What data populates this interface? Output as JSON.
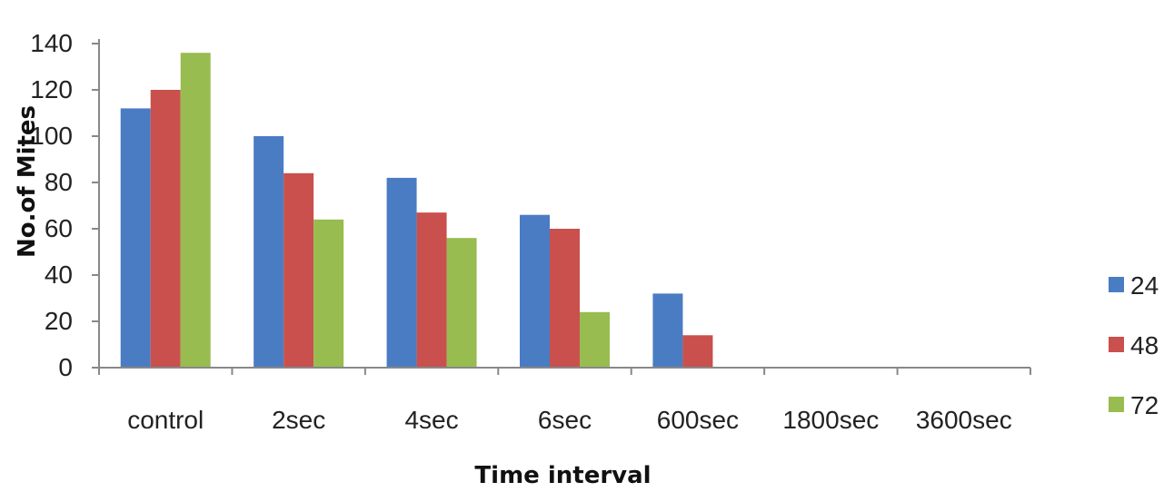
{
  "chart_data": {
    "type": "bar",
    "title": "",
    "xlabel": "Time interval",
    "ylabel": "No.of Mites",
    "categories": [
      "control",
      "2sec",
      "4sec",
      "6sec",
      "600sec",
      "1800sec",
      "3600sec"
    ],
    "series": [
      {
        "name": "24",
        "color": "#4a7cc4",
        "values": [
          112,
          100,
          82,
          66,
          32,
          0,
          0
        ]
      },
      {
        "name": "48",
        "color": "#c9504d",
        "values": [
          120,
          84,
          67,
          60,
          14,
          0,
          0
        ]
      },
      {
        "name": "72",
        "color": "#98bc50",
        "values": [
          136,
          64,
          56,
          24,
          0,
          0,
          0
        ]
      }
    ],
    "yticks": [
      0,
      20,
      40,
      60,
      80,
      100,
      120,
      140
    ],
    "ylim": [
      0,
      140
    ],
    "grid": false,
    "legend_position": "right"
  }
}
